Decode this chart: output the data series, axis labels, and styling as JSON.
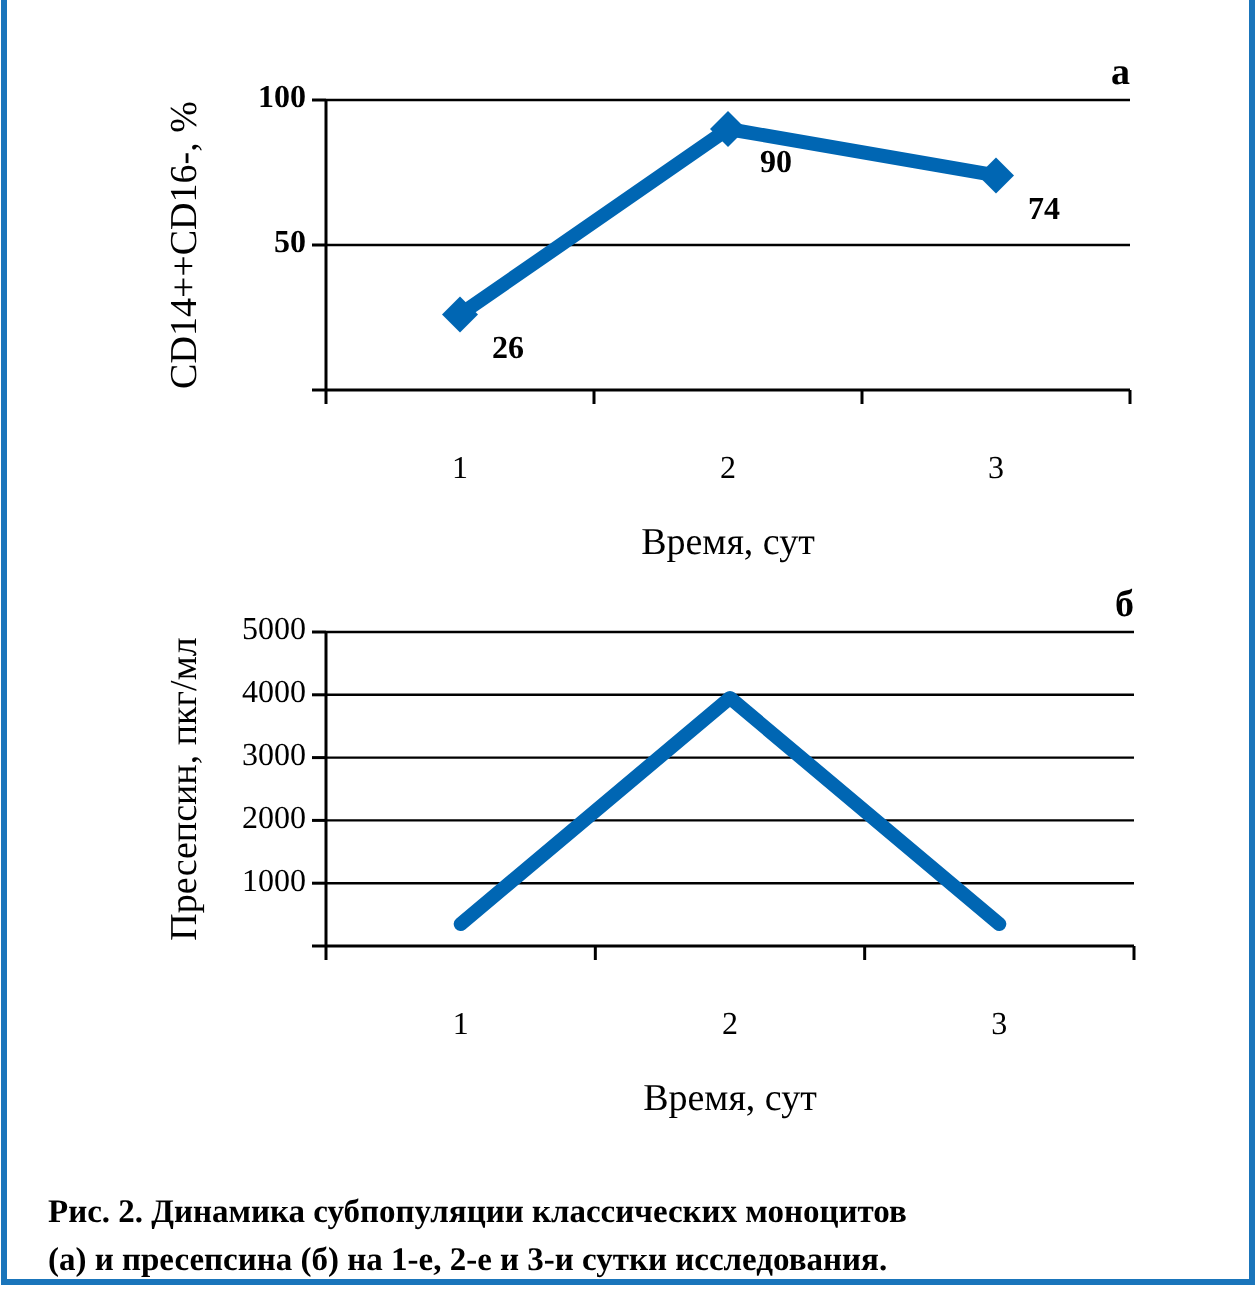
{
  "chart_data": [
    {
      "type": "line",
      "title": "а",
      "xlabel": "Время, сут",
      "ylabel": "CD14++CD16-, %",
      "categories": [
        "1",
        "2",
        "3"
      ],
      "series": [
        {
          "color": "#0066b3",
          "values": [
            26,
            90,
            74
          ]
        }
      ],
      "ylim": [
        0,
        100
      ],
      "yticks": [
        {
          "value": 0,
          "label": null
        },
        50,
        100
      ],
      "grid": "y",
      "marker": "diamond",
      "data_labels": true,
      "line_style": "solid"
    },
    {
      "type": "line",
      "title": "б",
      "xlabel": "Время, сут",
      "ylabel": "Пресепсин, пкг/мл",
      "categories": [
        "1",
        "2",
        "3"
      ],
      "series": [
        {
          "color": "#0066b3",
          "values": [
            350,
            3950,
            350
          ]
        }
      ],
      "ylim": [
        0,
        5000
      ],
      "yticks": [
        {
          "value": 0,
          "label": null
        },
        1000,
        2000,
        3000,
        4000,
        5000
      ],
      "grid": "y",
      "line_style": "solid",
      "annotations": [
        "Рис. 2. Динамика субпопуляции классических моноцитов (а) и пресепсина (б) на 1-е,  2-е и 3-и сутки исследования."
      ]
    }
  ]
}
